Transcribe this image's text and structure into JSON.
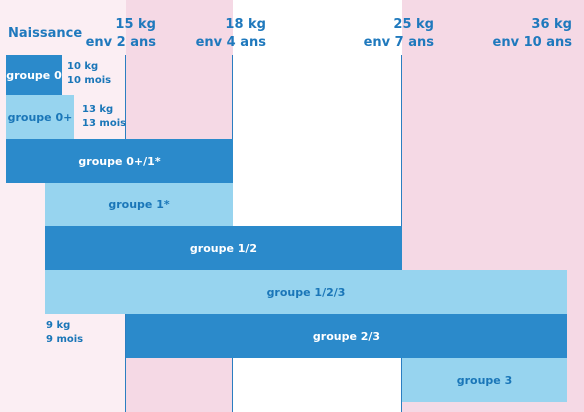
{
  "origin_label": "Naissance",
  "milestones": [
    {
      "weight": "15 kg",
      "age": "env 2 ans"
    },
    {
      "weight": "18 kg",
      "age": "env 4 ans"
    },
    {
      "weight": "25 kg",
      "age": "env 7 ans"
    },
    {
      "weight": "36 kg",
      "age": "env 10 ans"
    }
  ],
  "groups": [
    {
      "label": "groupe 0",
      "limit_weight": "10 kg",
      "limit_age": "10 mois"
    },
    {
      "label": "groupe 0+",
      "limit_weight": "13 kg",
      "limit_age": "13 mois"
    },
    {
      "label": "groupe 0+/1*"
    },
    {
      "label": "groupe 1*"
    },
    {
      "label": "groupe 1/2"
    },
    {
      "label": "groupe 1/2/3"
    },
    {
      "label": "groupe 2/3",
      "start_weight": "9 kg",
      "start_age": "9 mois"
    },
    {
      "label": "groupe 3"
    }
  ],
  "colors": {
    "dark_bar": "#2b8acb",
    "light_bar": "#97d4ef",
    "pink_zone": "#f5d9e5",
    "pale_zone": "#fbeef3",
    "white_zone": "#ffffff",
    "text_blue": "#1f79bd"
  }
}
